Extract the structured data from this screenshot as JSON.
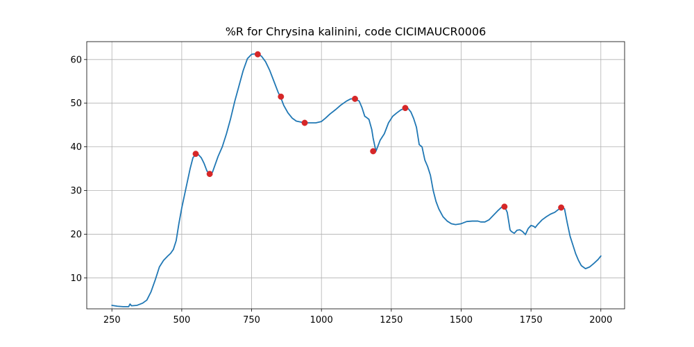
{
  "chart_data": {
    "type": "line",
    "title": "%R for Chrysina kalinini, code CICIMAUCR0006",
    "xlabel": "",
    "ylabel": "",
    "xlim": [
      160,
      2085
    ],
    "ylim": [
      2.9,
      64.1
    ],
    "grid": true,
    "xticks": [
      250,
      500,
      750,
      1000,
      1250,
      1500,
      1750,
      2000
    ],
    "yticks": [
      10,
      20,
      30,
      40,
      50,
      60
    ],
    "line_color": "#1f77b4",
    "marker_color": "#d62728",
    "series": [
      {
        "x": [
          250,
          270,
          290,
          310,
          315,
          320,
          340,
          360,
          375,
          390,
          405,
          420,
          435,
          450,
          460,
          470,
          480,
          490,
          500,
          515,
          530,
          540,
          550,
          560,
          570,
          580,
          590,
          600,
          610,
          620,
          630,
          645,
          660,
          675,
          690,
          705,
          720,
          735,
          750,
          760,
          770,
          775,
          785,
          800,
          815,
          830,
          845,
          855,
          865,
          880,
          895,
          910,
          925,
          940,
          960,
          980,
          1000,
          1015,
          1030,
          1050,
          1070,
          1090,
          1105,
          1120,
          1135,
          1145,
          1155,
          1160,
          1170,
          1180,
          1185,
          1195,
          1210,
          1225,
          1240,
          1255,
          1270,
          1285,
          1300,
          1310,
          1320,
          1330,
          1340,
          1345,
          1350,
          1360,
          1365,
          1370,
          1380,
          1385,
          1390,
          1400,
          1410,
          1420,
          1435,
          1450,
          1465,
          1480,
          1500,
          1520,
          1540,
          1560,
          1570,
          1585,
          1600,
          1615,
          1630,
          1645,
          1655,
          1665,
          1675,
          1680,
          1690,
          1700,
          1710,
          1720,
          1730,
          1740,
          1750,
          1760,
          1765,
          1775,
          1790,
          1805,
          1820,
          1835,
          1845,
          1855,
          1860,
          1870,
          1880,
          1890,
          1900,
          1910,
          1920,
          1930,
          1945,
          1960,
          1975,
          1990,
          2000
        ],
        "y": [
          3.7,
          3.5,
          3.4,
          3.4,
          4.0,
          3.6,
          3.7,
          4.2,
          4.9,
          6.8,
          9.5,
          12.5,
          14.0,
          15.0,
          15.6,
          16.5,
          18.5,
          22.5,
          26.0,
          30.5,
          35.0,
          37.5,
          38.3,
          38.2,
          37.5,
          36.2,
          34.5,
          33.8,
          34.2,
          36.0,
          37.8,
          40.0,
          43.0,
          46.5,
          50.5,
          54.0,
          57.5,
          60.2,
          61.2,
          61.3,
          61.2,
          61.1,
          60.8,
          59.5,
          57.5,
          55.0,
          52.5,
          51.2,
          49.5,
          47.8,
          46.6,
          45.9,
          45.7,
          45.5,
          45.5,
          45.5,
          45.8,
          46.6,
          47.5,
          48.5,
          49.6,
          50.5,
          51.0,
          50.9,
          50.5,
          49.0,
          47.0,
          46.8,
          46.3,
          44.0,
          42.0,
          39.0,
          41.5,
          43.0,
          45.5,
          47.0,
          47.8,
          48.5,
          48.8,
          48.8,
          48.0,
          46.5,
          44.5,
          42.5,
          40.5,
          40.0,
          38.5,
          37.0,
          35.5,
          34.5,
          33.5,
          30.0,
          27.5,
          25.8,
          24.0,
          23.0,
          22.4,
          22.2,
          22.4,
          22.9,
          23.0,
          23.0,
          22.8,
          22.8,
          23.3,
          24.3,
          25.3,
          26.2,
          26.4,
          25.0,
          21.0,
          20.6,
          20.2,
          20.9,
          21.0,
          20.6,
          19.9,
          21.3,
          22.0,
          21.8,
          21.5,
          22.3,
          23.3,
          24.0,
          24.6,
          25.0,
          25.5,
          26.0,
          26.3,
          25.8,
          22.5,
          19.5,
          17.5,
          15.5,
          14.0,
          12.8,
          12.1,
          12.5,
          13.3,
          14.2,
          15.0
        ]
      }
    ],
    "markers": {
      "x": [
        550,
        600,
        772,
        855,
        940,
        1120,
        1185,
        1300,
        1655,
        1858
      ],
      "y": [
        38.4,
        33.8,
        61.2,
        51.5,
        45.5,
        51.0,
        39.0,
        48.9,
        26.3,
        26.1
      ]
    }
  }
}
